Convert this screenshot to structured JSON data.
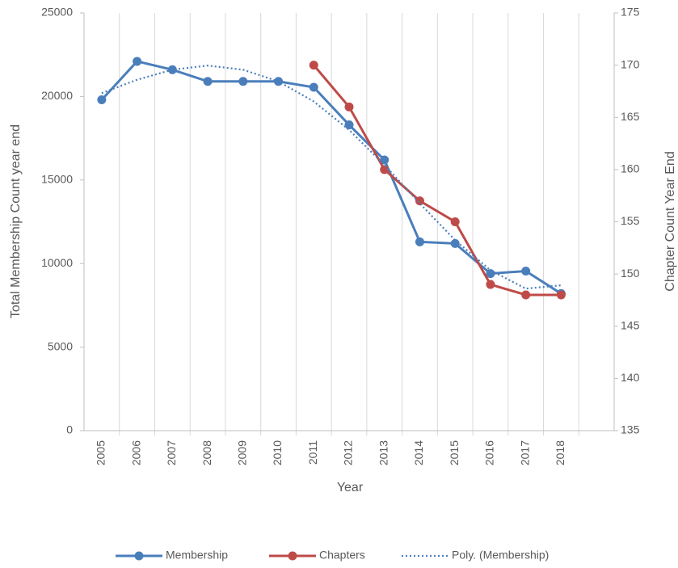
{
  "chart_data": {
    "type": "line",
    "x_label": "Year",
    "y_label": "Total Membership Count year end",
    "y2_label": "Chapter Count Year End",
    "categories": [
      "2005",
      "2006",
      "2007",
      "2008",
      "2009",
      "2010",
      "2011",
      "2012",
      "2013",
      "2014",
      "2015",
      "2016",
      "2017",
      "2018",
      null
    ],
    "series": [
      {
        "name": "Membership",
        "color": "#4a7ebb",
        "marker": true,
        "style": "solid",
        "values": [
          19800,
          22100,
          21600,
          20900,
          20900,
          20900,
          20550,
          18300,
          16200,
          11300,
          11200,
          9400,
          9550,
          8200,
          null
        ]
      },
      {
        "name": "Chapters",
        "color": "#be4b48",
        "marker": true,
        "style": "solid",
        "axis": "y2",
        "values": [
          null,
          null,
          null,
          null,
          null,
          null,
          170,
          166,
          160,
          157,
          155,
          149,
          148,
          148,
          null
        ]
      },
      {
        "name": "Poly. (Membership)",
        "color": "#4a7ebb",
        "marker": false,
        "style": "dotted",
        "values": [
          20200,
          21000,
          21600,
          21850,
          21600,
          20900,
          19700,
          18000,
          15900,
          13600,
          11400,
          9600,
          8500,
          8700,
          null
        ]
      }
    ],
    "ylim": [
      0,
      25000
    ],
    "yticks": [
      0,
      5000,
      10000,
      15000,
      20000,
      25000
    ],
    "y2lim": [
      135,
      175
    ],
    "y2ticks": [
      135,
      140,
      145,
      150,
      155,
      160,
      165,
      170,
      175
    ],
    "grid": "vertical",
    "legend": "bottom"
  }
}
